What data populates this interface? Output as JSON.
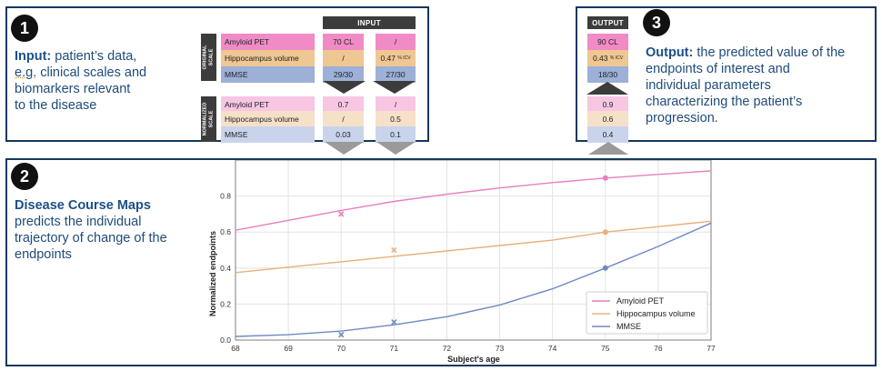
{
  "panel1": {
    "badge": "1",
    "title": "Input:",
    "line1_rest": " patient’s data,",
    "line2_eg": "e.g.",
    "line2_rest": " clinical scales and",
    "line3": "biomarkers relevant",
    "line4": "to the disease"
  },
  "table": {
    "input_header": "INPUT",
    "original_label_1": "ORIGINAL",
    "original_label_2": "SCALE",
    "normalized_label_1": "NORMALIZED",
    "normalized_label_2": "SCALE",
    "rows": [
      "Amyloid PET",
      "Hippocampus volume",
      "MMSE"
    ],
    "orig_col1": [
      "70 CL",
      "/",
      "29/30"
    ],
    "orig_col2_0": "/",
    "orig_col2_1_val": "0.47",
    "orig_col2_1_unit": "% ICV",
    "orig_col2_2": "27/30",
    "norm_col1": [
      "0.7",
      "/",
      "0.03"
    ],
    "norm_col2": [
      "/",
      "0.5",
      "0.1"
    ]
  },
  "panel3": {
    "badge": "3",
    "output_header": "OUTPUT",
    "orig_0": "90 CL",
    "orig_1_val": "0.43",
    "orig_1_unit": "% ICV",
    "orig_2": "18/30",
    "norm": [
      "0.9",
      "0.6",
      "0.4"
    ],
    "title": "Output:",
    "line1_rest": " the predicted value of the",
    "line2": "endpoints of interest and",
    "line3": "individual parameters",
    "line4": "characterizing the patient’s",
    "line5": "progression."
  },
  "panel2": {
    "badge": "2",
    "title": "Disease Course Maps",
    "line2": "predicts the individual",
    "line3": "trajectory of change of the",
    "line4": "endpoints"
  },
  "colors": {
    "navy": "#16375f",
    "amyloid": "#e97fc0",
    "hippo": "#e8b07a",
    "mmse": "#6f89c6",
    "amyloid_orig": "#f08bc6",
    "hippo_orig": "#eec793",
    "mmse_orig": "#9cb0d8",
    "amyloid_norm": "#f7c6e2",
    "hippo_norm": "#f6e0c8",
    "mmse_norm": "#c9d4ec"
  },
  "chart_data": {
    "type": "line",
    "xlabel": "Subject's age",
    "ylabel": "Normalized endpoints",
    "xlim": [
      68,
      77
    ],
    "ylim": [
      0.0,
      1.0
    ],
    "xticks": [
      "68",
      "69",
      "70",
      "71",
      "72",
      "73",
      "74",
      "75",
      "76",
      "77"
    ],
    "yticks": [
      "0.0",
      "0.2",
      "0.4",
      "0.6",
      "0.8"
    ],
    "legend_position": "bottom-right",
    "series": [
      {
        "name": "Amyloid PET",
        "color": "#e97fc0",
        "curve_x": [
          68,
          69,
          70,
          71,
          72,
          73,
          74,
          75,
          76,
          77
        ],
        "curve_y": [
          0.61,
          0.665,
          0.72,
          0.77,
          0.81,
          0.845,
          0.875,
          0.9,
          0.92,
          0.94
        ],
        "observed": [
          {
            "x": 70,
            "y": 0.7
          }
        ],
        "predicted": [
          {
            "x": 75,
            "y": 0.9
          }
        ]
      },
      {
        "name": "Hippocampus volume",
        "color": "#e8b07a",
        "curve_x": [
          68,
          69,
          70,
          71,
          72,
          73,
          74,
          75,
          76,
          77
        ],
        "curve_y": [
          0.375,
          0.405,
          0.435,
          0.465,
          0.495,
          0.525,
          0.555,
          0.6,
          0.63,
          0.66
        ],
        "observed": [
          {
            "x": 71,
            "y": 0.5
          }
        ],
        "predicted": [
          {
            "x": 75,
            "y": 0.6
          }
        ]
      },
      {
        "name": "MMSE",
        "color": "#6f89c6",
        "curve_x": [
          68,
          69,
          70,
          71,
          72,
          73,
          74,
          75,
          76,
          77
        ],
        "curve_y": [
          0.02,
          0.03,
          0.05,
          0.085,
          0.13,
          0.195,
          0.285,
          0.4,
          0.52,
          0.65
        ],
        "observed": [
          {
            "x": 70,
            "y": 0.03
          },
          {
            "x": 71,
            "y": 0.1
          }
        ],
        "predicted": [
          {
            "x": 75,
            "y": 0.4
          }
        ]
      }
    ]
  }
}
